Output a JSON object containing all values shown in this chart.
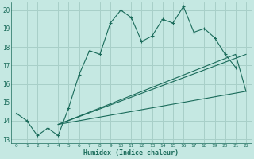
{
  "xlabel": "Humidex (Indice chaleur)",
  "bg_color": "#c5e8e2",
  "grid_color": "#a8cfc8",
  "line_color": "#1a6b5a",
  "xlim": [
    -0.5,
    22.5
  ],
  "ylim": [
    12.8,
    20.4
  ],
  "xticks": [
    0,
    1,
    2,
    3,
    4,
    5,
    6,
    7,
    8,
    9,
    10,
    11,
    12,
    13,
    14,
    15,
    16,
    17,
    18,
    19,
    20,
    21,
    22
  ],
  "yticks": [
    13,
    14,
    15,
    16,
    17,
    18,
    19,
    20
  ],
  "line1_x": [
    0,
    1,
    2,
    3,
    4,
    5,
    6,
    7,
    8,
    9,
    10,
    11,
    12,
    13,
    14,
    15,
    16,
    17,
    18,
    19,
    20,
    21
  ],
  "line1_y": [
    14.4,
    14.0,
    13.2,
    13.6,
    13.2,
    14.7,
    16.5,
    17.8,
    17.6,
    19.3,
    20.0,
    19.6,
    18.3,
    18.6,
    19.5,
    19.3,
    20.2,
    18.8,
    19.0,
    18.5,
    17.6,
    16.9
  ],
  "line2_x": [
    4,
    22
  ],
  "line2_y": [
    13.8,
    15.6
  ],
  "line3_x": [
    4,
    22
  ],
  "line3_y": [
    13.8,
    17.6
  ],
  "line4_x": [
    4,
    21,
    22
  ],
  "line4_y": [
    13.8,
    17.6,
    15.6
  ]
}
